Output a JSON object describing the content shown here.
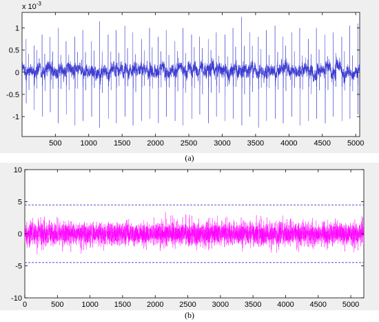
{
  "chart_data": [
    {
      "type": "line",
      "title": "",
      "xlabel": "",
      "ylabel": "",
      "exponent_label": "x 10",
      "exponent_power": "-3",
      "caption": "(a)",
      "xlim": [
        1,
        5060
      ],
      "ylim": [
        -1.45,
        1.35
      ],
      "xticks": [
        500,
        1000,
        1500,
        2000,
        2500,
        3000,
        3500,
        4000,
        4500,
        5000
      ],
      "yticks": [
        -1,
        -0.5,
        0,
        0.5,
        1
      ],
      "grid": false,
      "line_color": "#3a3ad2",
      "series": [
        {
          "n_points": 5060,
          "baseline": 0.05,
          "noise_amplitude": 0.12,
          "spike_positions": [
            60,
            180,
            300,
            420,
            540,
            660,
            790,
            910,
            1040,
            1160,
            1290,
            1410,
            1540,
            1660,
            1790,
            1910,
            2040,
            2160,
            2290,
            2410,
            2540,
            2660,
            2790,
            2910,
            3040,
            3160,
            3290,
            3410,
            3540,
            3660,
            3790,
            3910,
            4040,
            4160,
            4290,
            4410,
            4540,
            4660,
            4790,
            4910,
            5030
          ],
          "spike_peaks": [
            0.75,
            0.6,
            0.85,
            0.8,
            1.0,
            0.7,
            0.8,
            0.95,
            0.7,
            1.15,
            0.85,
            0.95,
            1.05,
            0.9,
            0.75,
            1.0,
            0.8,
            0.95,
            0.7,
            1.0,
            0.85,
            0.8,
            0.75,
            0.9,
            0.85,
            1.0,
            1.25,
            0.9,
            0.8,
            0.95,
            1.05,
            0.8,
            0.9,
            1.0,
            0.75,
            1.0,
            0.85,
            0.9,
            0.8,
            1.05,
            1.1
          ],
          "spike_troughs": [
            -0.7,
            -0.85,
            -1.0,
            -0.9,
            -1.15,
            -0.95,
            -1.2,
            -1.1,
            -1.0,
            -1.25,
            -1.05,
            -1.15,
            -1.0,
            -1.2,
            -1.1,
            -1.05,
            -1.15,
            -1.0,
            -1.1,
            -1.2,
            -1.05,
            -0.95,
            -1.15,
            -1.0,
            -1.1,
            -1.05,
            -1.2,
            -1.0,
            -1.25,
            -1.1,
            -1.05,
            -1.15,
            -1.0,
            -1.2,
            -1.1,
            -1.05,
            -1.15,
            -1.0,
            -1.1,
            -1.05,
            -0.95
          ]
        }
      ]
    },
    {
      "type": "line",
      "title": "",
      "xlabel": "",
      "ylabel": "",
      "caption": "(b)",
      "xlim": [
        0,
        5200
      ],
      "ylim": [
        -10,
        10
      ],
      "xticks": [
        0,
        500,
        1000,
        1500,
        2000,
        2500,
        3000,
        3500,
        4000,
        4500,
        5000
      ],
      "yticks": [
        -10,
        -5,
        0,
        5,
        10
      ],
      "grid": false,
      "line_color": "#ff00ff",
      "threshold_color": "#3333cc",
      "thresholds": [
        4.5,
        -4.5
      ],
      "series": [
        {
          "n_points": 5200,
          "noise_std": 0.9,
          "max_abs": 4.2
        }
      ]
    }
  ]
}
